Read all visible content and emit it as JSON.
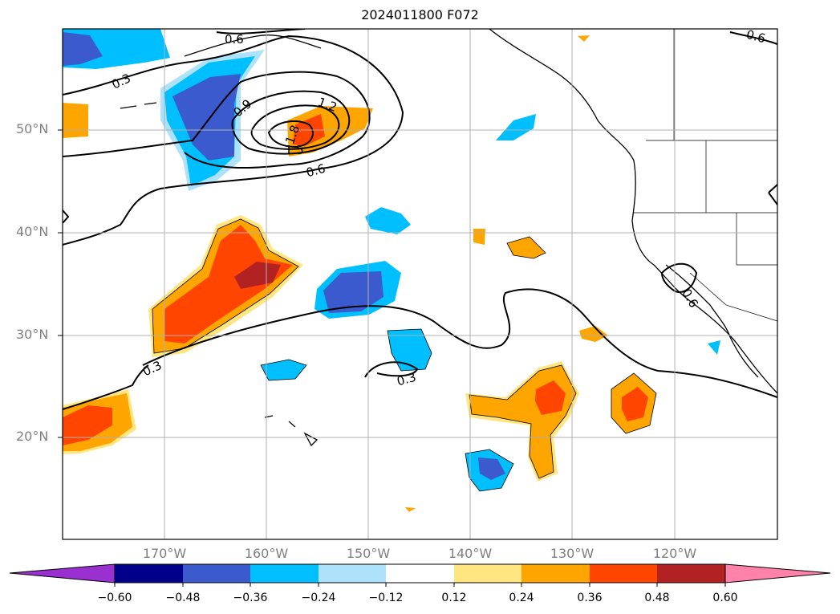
{
  "title": "2024011800 F072",
  "lat_labels": [
    "50°N",
    "40°N",
    "30°N",
    "20°N"
  ],
  "lon_labels": [
    "170°W",
    "160°W",
    "150°W",
    "140°W",
    "130°W",
    "120°W"
  ],
  "contour_labels": [
    "0.6",
    "0.3",
    "0.9",
    "1.2",
    "1.8",
    "1.5",
    "0.6",
    "0.3",
    "0.3",
    "0.6",
    "0.6"
  ],
  "colorbar": {
    "tick_labels": [
      "−0.60",
      "−0.48",
      "−0.36",
      "−0.24",
      "−0.12",
      "0.12",
      "0.24",
      "0.36",
      "0.48",
      "0.60"
    ],
    "colors": [
      "#9b30d0",
      "#00008b",
      "#3a5acd",
      "#00bfff",
      "#aee1fa",
      "#ffffff",
      "#ffe680",
      "#ffa500",
      "#ff4500",
      "#b22222",
      "#ff82ab"
    ]
  },
  "icons": {
    "map": "north-pacific-map"
  }
}
